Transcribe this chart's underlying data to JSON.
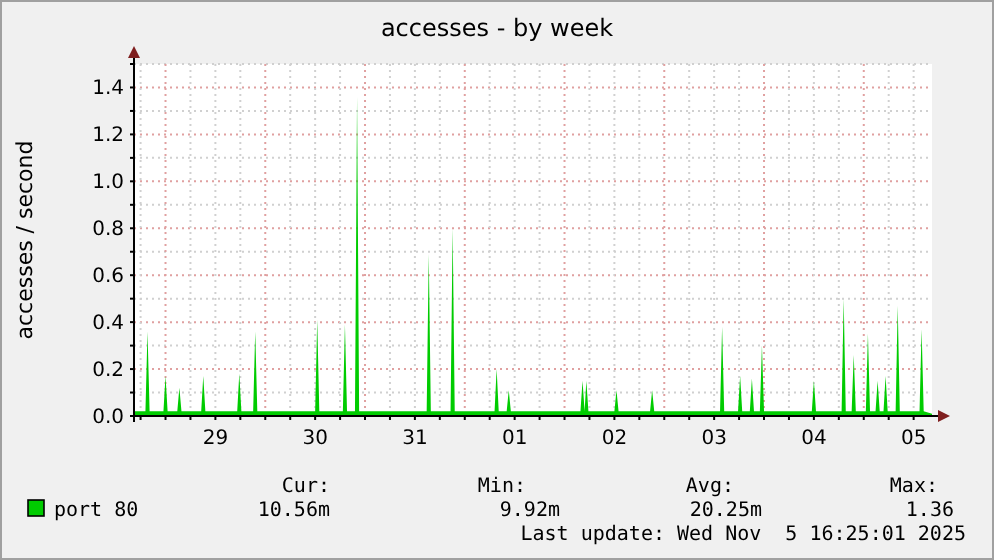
{
  "chart_data": {
    "type": "area",
    "title": "accesses - by week",
    "ylabel": "accesses / second",
    "x": [
      "2025-10-28T16:25",
      "2025-10-28T19:10",
      "2025-10-28T19:40",
      "2025-10-28T20:10",
      "2025-10-28T23:30",
      "2025-10-29T00:00",
      "2025-10-29T00:30",
      "2025-10-29T02:50",
      "2025-10-29T03:20",
      "2025-10-29T03:50",
      "2025-10-29T08:35",
      "2025-10-29T09:05",
      "2025-10-29T09:35",
      "2025-10-29T17:15",
      "2025-10-29T17:45",
      "2025-10-29T18:15",
      "2025-10-29T21:05",
      "2025-10-29T21:35",
      "2025-10-29T22:05",
      "2025-10-30T12:00",
      "2025-10-30T12:30",
      "2025-10-30T13:00",
      "2025-10-30T18:40",
      "2025-10-30T19:10",
      "2025-10-30T19:40",
      "2025-10-30T21:35",
      "2025-10-30T22:05",
      "2025-10-30T22:35",
      "2025-10-31T14:50",
      "2025-10-31T15:20",
      "2025-10-31T15:50",
      "2025-10-31T20:35",
      "2025-10-31T21:05",
      "2025-10-31T21:35",
      "2025-11-01T07:10",
      "2025-11-01T07:40",
      "2025-11-01T08:10",
      "2025-11-01T10:05",
      "2025-11-01T10:35",
      "2025-11-01T11:05",
      "2025-11-02T03:50",
      "2025-11-02T04:20",
      "2025-11-02T04:50",
      "2025-11-02T05:15",
      "2025-11-02T05:45",
      "2025-11-02T12:00",
      "2025-11-02T12:30",
      "2025-11-02T13:00",
      "2025-11-02T20:35",
      "2025-11-02T21:05",
      "2025-11-02T21:35",
      "2025-11-03T13:25",
      "2025-11-03T13:55",
      "2025-11-03T14:25",
      "2025-11-03T17:45",
      "2025-11-03T18:15",
      "2025-11-03T18:45",
      "2025-11-03T20:35",
      "2025-11-03T21:05",
      "2025-11-03T21:35",
      "2025-11-03T23:00",
      "2025-11-03T23:30",
      "2025-11-04T00:00",
      "2025-11-04T11:30",
      "2025-11-04T12:00",
      "2025-11-04T12:30",
      "2025-11-04T18:40",
      "2025-11-04T19:10",
      "2025-11-04T19:40",
      "2025-11-04T21:05",
      "2025-11-04T21:35",
      "2025-11-04T22:05",
      "2025-11-05T00:30",
      "2025-11-05T01:00",
      "2025-11-05T01:30",
      "2025-11-05T02:50",
      "2025-11-05T03:20",
      "2025-11-05T03:50",
      "2025-11-05T04:45",
      "2025-11-05T05:15",
      "2025-11-05T05:45",
      "2025-11-05T07:40",
      "2025-11-05T08:10",
      "2025-11-05T08:40",
      "2025-11-05T13:25",
      "2025-11-05T13:55",
      "2025-11-05T14:25",
      "2025-11-05T16:25"
    ],
    "series": [
      {
        "name": "port 80",
        "color": "#00cc00",
        "values": [
          0.02,
          0.02,
          0.36,
          0.02,
          0.02,
          0.17,
          0.02,
          0.02,
          0.12,
          0.02,
          0.02,
          0.17,
          0.02,
          0.02,
          0.18,
          0.02,
          0.02,
          0.36,
          0.02,
          0.02,
          0.41,
          0.02,
          0.02,
          0.39,
          0.02,
          0.02,
          1.36,
          0.02,
          0.02,
          0.69,
          0.02,
          0.02,
          0.8,
          0.02,
          0.02,
          0.2,
          0.02,
          0.02,
          0.11,
          0.02,
          0.02,
          0.15,
          0.02,
          0.15,
          0.02,
          0.02,
          0.11,
          0.02,
          0.02,
          0.11,
          0.02,
          0.02,
          0.38,
          0.02,
          0.02,
          0.17,
          0.02,
          0.02,
          0.16,
          0.02,
          0.02,
          0.3,
          0.02,
          0.02,
          0.15,
          0.02,
          0.02,
          0.5,
          0.02,
          0.02,
          0.26,
          0.02,
          0.02,
          0.35,
          0.02,
          0.02,
          0.15,
          0.02,
          0.02,
          0.17,
          0.02,
          0.02,
          0.47,
          0.02,
          0.02,
          0.37,
          0.02,
          0.01
        ]
      }
    ],
    "xlim": [
      "2025-10-28T16:25",
      "2025-11-05T16:25"
    ],
    "xticks": [
      {
        "value": "2025-10-28T18:00",
        "label": null
      },
      {
        "value": "2025-10-29T00:00",
        "label": null
      },
      {
        "value": "2025-10-29T06:00",
        "label": null
      },
      {
        "value": "2025-10-29T12:00",
        "label": "29"
      },
      {
        "value": "2025-10-29T18:00",
        "label": null
      },
      {
        "value": "2025-10-30T00:00",
        "label": null
      },
      {
        "value": "2025-10-30T06:00",
        "label": null
      },
      {
        "value": "2025-10-30T12:00",
        "label": "30"
      },
      {
        "value": "2025-10-30T18:00",
        "label": null
      },
      {
        "value": "2025-10-31T00:00",
        "label": null
      },
      {
        "value": "2025-10-31T06:00",
        "label": null
      },
      {
        "value": "2025-10-31T12:00",
        "label": "31"
      },
      {
        "value": "2025-10-31T18:00",
        "label": null
      },
      {
        "value": "2025-11-01T00:00",
        "label": null
      },
      {
        "value": "2025-11-01T06:00",
        "label": null
      },
      {
        "value": "2025-11-01T12:00",
        "label": "01"
      },
      {
        "value": "2025-11-01T18:00",
        "label": null
      },
      {
        "value": "2025-11-02T00:00",
        "label": null
      },
      {
        "value": "2025-11-02T06:00",
        "label": null
      },
      {
        "value": "2025-11-02T12:00",
        "label": "02"
      },
      {
        "value": "2025-11-02T18:00",
        "label": null
      },
      {
        "value": "2025-11-03T00:00",
        "label": null
      },
      {
        "value": "2025-11-03T06:00",
        "label": null
      },
      {
        "value": "2025-11-03T12:00",
        "label": "03"
      },
      {
        "value": "2025-11-03T18:00",
        "label": null
      },
      {
        "value": "2025-11-04T00:00",
        "label": null
      },
      {
        "value": "2025-11-04T06:00",
        "label": null
      },
      {
        "value": "2025-11-04T12:00",
        "label": "04"
      },
      {
        "value": "2025-11-04T18:00",
        "label": null
      },
      {
        "value": "2025-11-05T00:00",
        "label": null
      },
      {
        "value": "2025-11-05T06:00",
        "label": null
      },
      {
        "value": "2025-11-05T12:00",
        "label": "05"
      }
    ],
    "ylim": [
      0,
      1.5
    ],
    "yticks": [
      {
        "value": 0,
        "label": "0.0"
      },
      {
        "value": 0.1,
        "label": null
      },
      0.2,
      {
        "value": 0.3,
        "label": null
      },
      0.4,
      {
        "value": 0.5,
        "label": null
      },
      0.6,
      {
        "value": 0.7,
        "label": null
      },
      0.8,
      {
        "value": 0.9,
        "label": null
      },
      {
        "value": 1,
        "label": "1.0"
      },
      {
        "value": 1.1,
        "label": null
      },
      1.2,
      {
        "value": 1.3,
        "label": null
      },
      1.4,
      {
        "value": 1.5,
        "label": null
      }
    ],
    "grid": true,
    "legend": "bottom left",
    "annotations": [
      "Cur:",
      "10.56m",
      "Min:",
      "9.92m",
      "Avg:",
      "20.25m",
      "Max:",
      "1.36",
      "Last update: Wed Nov  5 16:25:01 2025"
    ]
  }
}
